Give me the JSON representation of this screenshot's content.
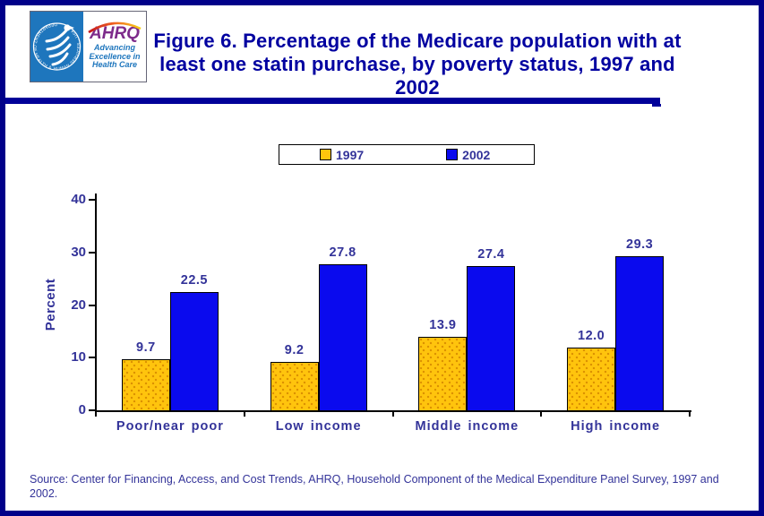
{
  "colors": {
    "page-border": "#000089",
    "divider-navy": "#000099",
    "title-navy": "#0000A0",
    "text-navy": "#333399",
    "gold": "#FFC40D",
    "gold-dot": "#D98E00",
    "bar-blue": "#0A0AEE",
    "hhs-blue": "#1E76BD",
    "ahrq-purple": "#7D2B8B"
  },
  "header": {
    "logo": {
      "hhs_ring_text": "DEPARTMENT OF HEALTH & HUMAN SERVICES · USA",
      "ahrq_acronym": "AHRQ",
      "tagline": [
        "Advancing",
        "Excellence in",
        "Health Care"
      ]
    },
    "title_lines": [
      "Figure 6. Percentage of the Medicare population with at",
      "least one statin purchase, by poverty status, 1997 and 2002"
    ]
  },
  "legend": {
    "items": [
      {
        "label": "1997",
        "color": "#FFC40D"
      },
      {
        "label": "2002",
        "color": "#0A0AEE"
      }
    ]
  },
  "chart_data": {
    "type": "bar",
    "title": "Figure 6. Percentage of the Medicare population with at least one statin purchase, by poverty status, 1997 and 2002",
    "categories": [
      "Poor/near poor",
      "Low income",
      "Middle income",
      "High income"
    ],
    "series": [
      {
        "name": "1997",
        "color": "#FFC40D",
        "values": [
          9.7,
          9.2,
          13.9,
          12.0
        ]
      },
      {
        "name": "2002",
        "color": "#0A0AEE",
        "values": [
          22.5,
          27.8,
          27.4,
          29.3
        ]
      }
    ],
    "xlabel": "",
    "ylabel": "Percent",
    "ylim": [
      0,
      40
    ],
    "yticks": [
      0,
      10,
      20,
      30,
      40
    ],
    "grid": false,
    "legend_position": "top-center",
    "value_labels_decimals": 1
  },
  "source": {
    "text": "Source: Center for Financing, Access, and Cost Trends, AHRQ, Household Component of the Medical Expenditure Panel Survey, 1997 and 2002."
  }
}
